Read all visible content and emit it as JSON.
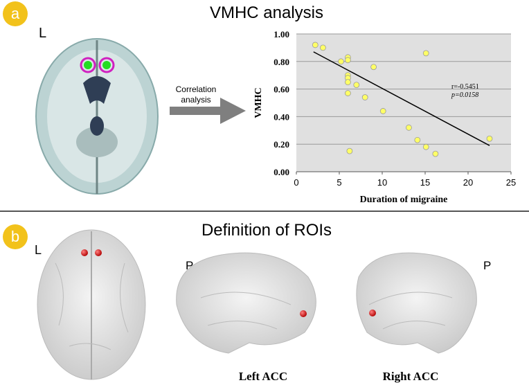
{
  "panel_a": {
    "letter": "a",
    "title": "VMHC analysis",
    "side_label": "L",
    "arrow_label": [
      "Correlation",
      "analysis"
    ]
  },
  "chart_data": {
    "type": "scatter",
    "xlabel": "Duration of migraine",
    "ylabel": "VMHC",
    "xlim": [
      0,
      25
    ],
    "ylim": [
      0,
      1
    ],
    "xticks": [
      0,
      5,
      10,
      15,
      20,
      25
    ],
    "yticks": [
      {
        "value": 0,
        "label": "0.00"
      },
      {
        "value": 0.2,
        "label": "0.20"
      },
      {
        "value": 0.4,
        "label": "0.40"
      },
      {
        "value": 0.6,
        "label": "0.60"
      },
      {
        "value": 0.8,
        "label": "0.80"
      },
      {
        "value": 1,
        "label": "1.00"
      }
    ],
    "grid": true,
    "color": "#ffff66",
    "background": "#e0e0e0",
    "x": [
      2.2,
      3.1,
      5.2,
      6.0,
      6.0,
      6.0,
      6.0,
      6.0,
      6.0,
      7.0,
      8.0,
      9.0,
      10.1,
      6.2,
      13.1,
      14.1,
      15.1,
      15.1,
      16.2,
      22.5
    ],
    "y": [
      0.92,
      0.9,
      0.8,
      0.83,
      0.81,
      0.7,
      0.68,
      0.65,
      0.57,
      0.63,
      0.54,
      0.76,
      0.44,
      0.15,
      0.32,
      0.23,
      0.86,
      0.18,
      0.13,
      0.24
    ],
    "trendline": {
      "x": [
        2,
        22.5
      ],
      "y": [
        0.87,
        0.19
      ],
      "color": "#000000"
    },
    "annotation": [
      "r=-0.5451",
      "p=0.0158"
    ]
  },
  "panel_b": {
    "letter": "b",
    "title": "Definition of ROIs",
    "side_label": "L",
    "view_labels": [
      "P",
      "P"
    ],
    "captions": [
      "Left ACC",
      "Right ACC"
    ]
  }
}
